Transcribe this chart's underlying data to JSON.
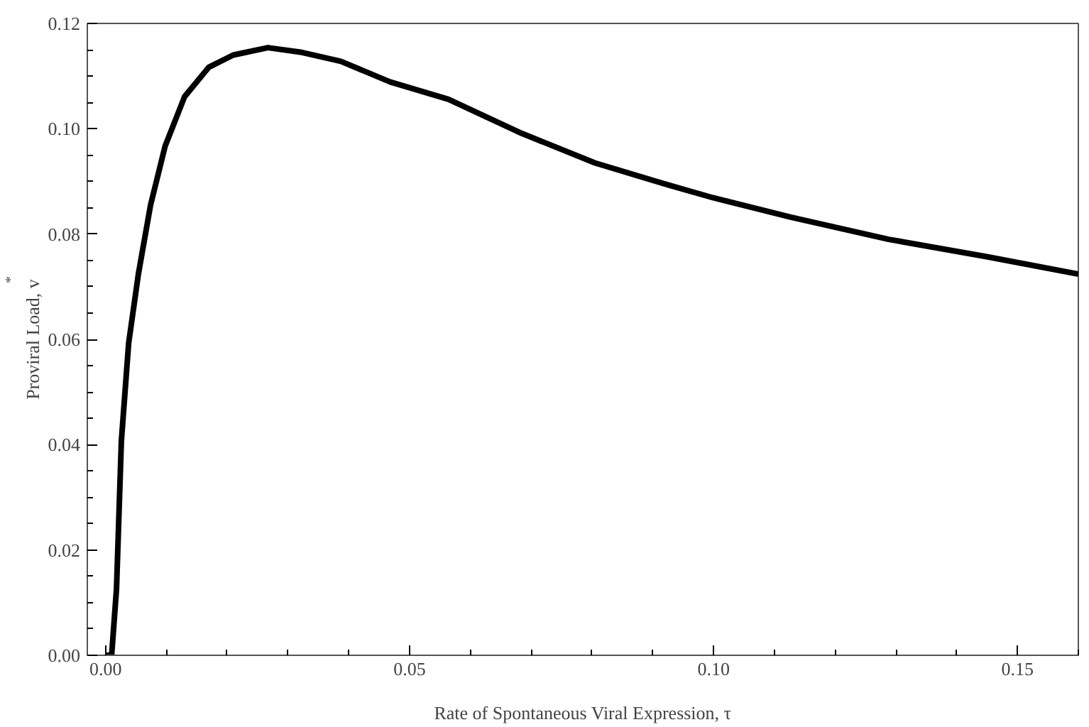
{
  "chart_data": {
    "type": "line",
    "xlabel": "Rate of Spontaneous Viral Expression, τ",
    "ylabel": "Proviral Load, v$^{*}$",
    "x": [
      0.0,
      0.001,
      0.0018,
      0.0026,
      0.0038,
      0.0054,
      0.0074,
      0.0098,
      0.013,
      0.017,
      0.021,
      0.0267,
      0.0323,
      0.0387,
      0.0468,
      0.0564,
      0.0685,
      0.0805,
      0.0926,
      0.0999,
      0.1127,
      0.1288,
      0.1449,
      0.16
    ],
    "series": [
      {
        "color": "#000000",
        "values": [
          0.0,
          0.0,
          0.0126,
          0.0407,
          0.0593,
          0.0724,
          0.0855,
          0.0967,
          0.1061,
          0.1117,
          0.114,
          0.1154,
          0.1145,
          0.1128,
          0.1089,
          0.1056,
          0.0991,
          0.0935,
          0.0893,
          0.0869,
          0.0832,
          0.079,
          0.0757,
          0.0724
        ]
      }
    ],
    "xlim": [
      -0.003,
      0.16
    ],
    "ylim": [
      0.0,
      0.12
    ],
    "xticks": [
      {
        "value": 0.0,
        "label": "0.00"
      },
      {
        "value": 0.05,
        "label": "0.05"
      },
      {
        "value": 0.1,
        "label": "0.10"
      },
      {
        "value": 0.15,
        "label": "0.15"
      }
    ],
    "yticks": [
      {
        "value": 0.0,
        "label": "0.00"
      },
      {
        "value": 0.02,
        "label": "0.02"
      },
      {
        "value": 0.04,
        "label": "0.04"
      },
      {
        "value": 0.06,
        "label": "0.06"
      },
      {
        "value": 0.08,
        "label": "0.08"
      },
      {
        "value": 0.1,
        "label": "0.10"
      },
      {
        "value": 0.12,
        "label": "0.12"
      }
    ],
    "grid": false,
    "marker": "none",
    "line_style": "solid"
  }
}
